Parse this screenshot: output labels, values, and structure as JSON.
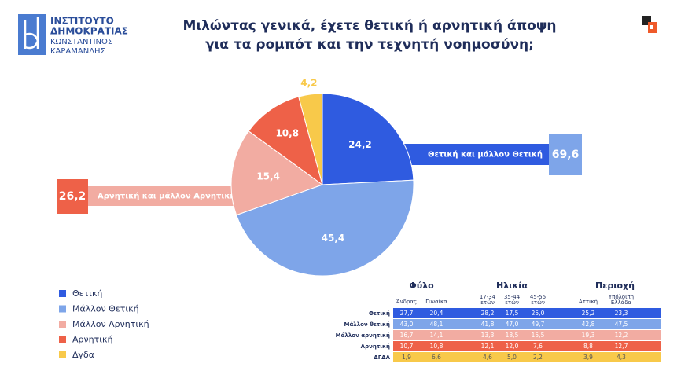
{
  "logo": {
    "lines": [
      "ΙΝΣΤΙΤΟΥΤΟ",
      "ΔΗΜΟΚΡΑΤΙΑΣ",
      "ΚΩΝΣΤΑΝΤΙΝΟΣ",
      "ΚΑΡΑΜΑΝΛΗΣ"
    ]
  },
  "chart_data": {
    "type": "pie",
    "title": [
      "Μιλώντας γενικά, έχετε θετική ή αρνητική άποψη",
      "για τα ρομπότ και την τεχνητή νοημοσύνη;"
    ],
    "categories": [
      "Θετική",
      "Μάλλον Θετική",
      "Μάλλον Αρνητική",
      "Αρνητική",
      "Δγδα"
    ],
    "values": [
      24.2,
      45.4,
      15.4,
      10.8,
      4.2
    ],
    "value_labels": [
      "24,2",
      "45,4",
      "15,4",
      "10,8",
      "4,2"
    ],
    "colors": [
      "#2f5be0",
      "#7ea5e9",
      "#f2aca2",
      "#ee6148",
      "#f8c94a"
    ],
    "callouts": [
      {
        "label": "Θετική και μάλλον Θετική",
        "value": 69.6,
        "value_label": "69,6",
        "color": "#2f5be0",
        "box_color": "#7ea5e9"
      },
      {
        "label": "Αρνητική και μάλλον Αρνητική",
        "value": 26.2,
        "value_label": "26,2",
        "color": "#f2aca2",
        "box_color": "#ee6148"
      }
    ]
  },
  "table": {
    "groups": [
      {
        "title": "Φύλο",
        "columns": [
          [
            "Άνδρας"
          ],
          [
            "Γυναίκα"
          ]
        ]
      },
      {
        "title": "Ηλικία",
        "columns": [
          [
            "17-34",
            "ετών"
          ],
          [
            "35-44",
            "ετών"
          ],
          [
            "45-55",
            "ετών"
          ]
        ]
      },
      {
        "title": "Περιοχή",
        "columns": [
          [
            "Αττική"
          ],
          [
            "Υπόλοιπη",
            "Ελλάδα"
          ]
        ]
      }
    ],
    "rows": [
      {
        "label": "Θετική",
        "color": "#2f5be0",
        "cells": [
          "27,7",
          "20,4",
          "28,2",
          "17,5",
          "25,0",
          "25,2",
          "23,3"
        ]
      },
      {
        "label": "Μάλλον θετική",
        "color": "#7ea5e9",
        "cells": [
          "43,0",
          "48,1",
          "41,8",
          "47,0",
          "49,7",
          "42,8",
          "47,5"
        ]
      },
      {
        "label": "Μάλλον αρνητική",
        "color": "#f2aca2",
        "cells": [
          "16,7",
          "14,1",
          "13,3",
          "18,5",
          "15,5",
          "19,3",
          "12,2"
        ]
      },
      {
        "label": "Αρνητική",
        "color": "#ee6148",
        "cells": [
          "10,7",
          "10,8",
          "12,1",
          "12,0",
          "7,6",
          "8,8",
          "12,7"
        ]
      },
      {
        "label": "ΔΓΔΑ",
        "color": "#f8c94a",
        "cells": [
          "1,9",
          "6,6",
          "4,6",
          "5,0",
          "2,2",
          "3,9",
          "4,3"
        ]
      }
    ]
  }
}
